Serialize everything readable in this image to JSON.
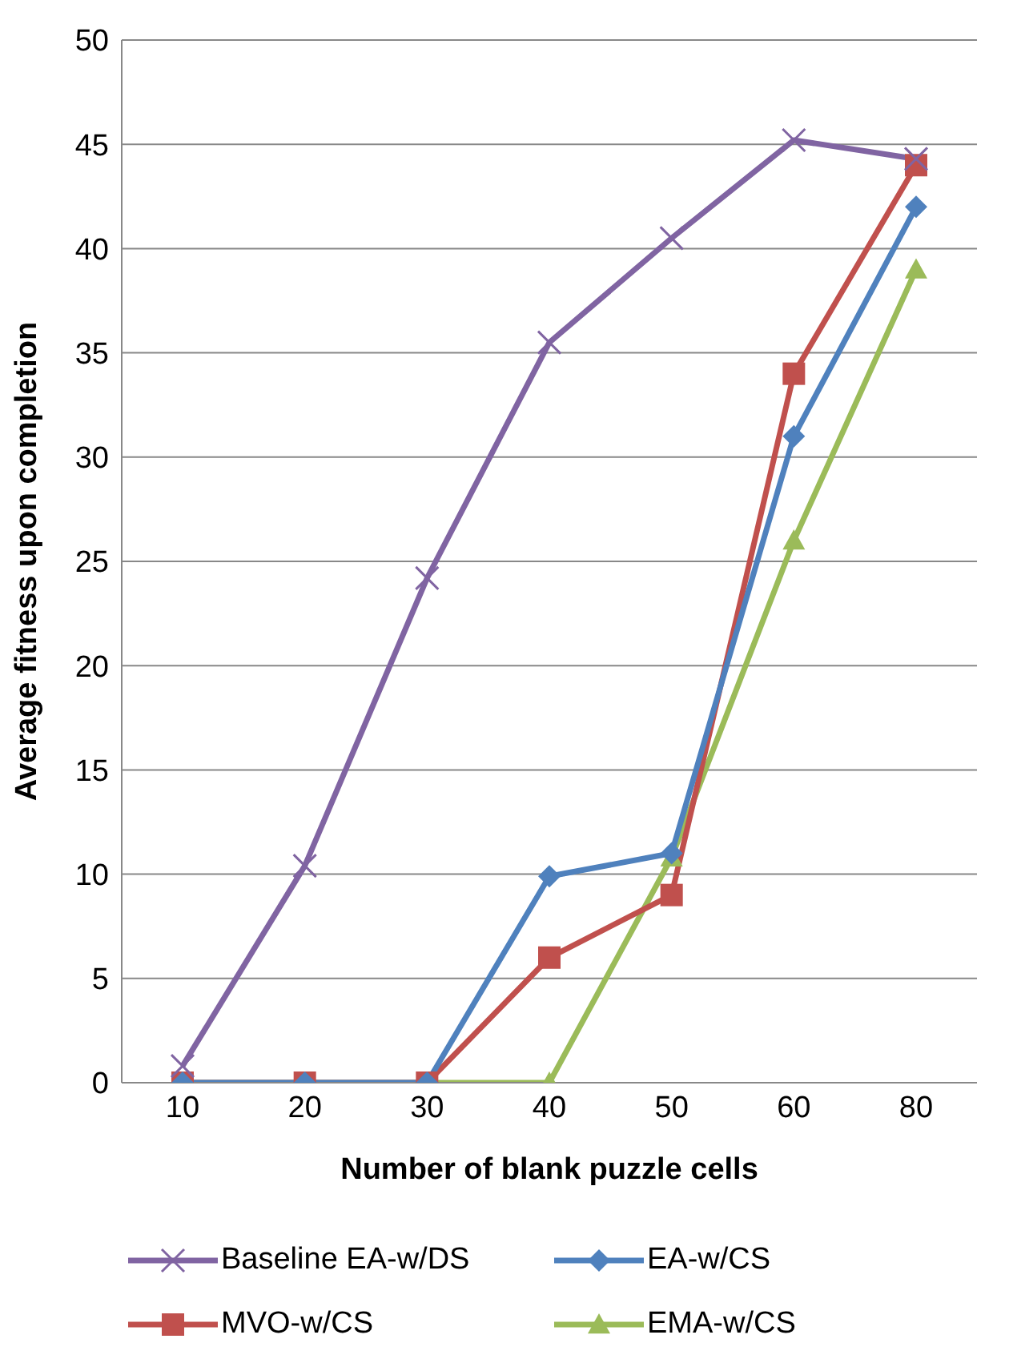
{
  "chart_data": {
    "type": "line",
    "xlabel": "Number of blank puzzle cells",
    "ylabel": "Average fitness upon completion",
    "categories": [
      "10",
      "20",
      "30",
      "40",
      "50",
      "60",
      "80"
    ],
    "ylim": [
      0,
      50
    ],
    "yticks": [
      0,
      5,
      10,
      15,
      20,
      25,
      30,
      35,
      40,
      45,
      50
    ],
    "grid": "y",
    "legend": "bottom",
    "series": [
      {
        "name": "Baseline EA-w/DS",
        "color": "#8064a2",
        "marker": "cross",
        "values": [
          0.8,
          10.4,
          24.2,
          35.5,
          40.5,
          45.2,
          44.3
        ]
      },
      {
        "name": "EA-w/CS",
        "color": "#4f81bd",
        "marker": "diamond",
        "values": [
          0,
          0,
          0,
          9.9,
          11,
          31,
          42
        ]
      },
      {
        "name": "MVO-w/CS",
        "color": "#c0504d",
        "marker": "square",
        "values": [
          0,
          0,
          0,
          6,
          9,
          34,
          44
        ]
      },
      {
        "name": "EMA-w/CS",
        "color": "#9bbb59",
        "marker": "triangle",
        "values": [
          0,
          0,
          0,
          0,
          10.8,
          26,
          39
        ]
      }
    ]
  }
}
